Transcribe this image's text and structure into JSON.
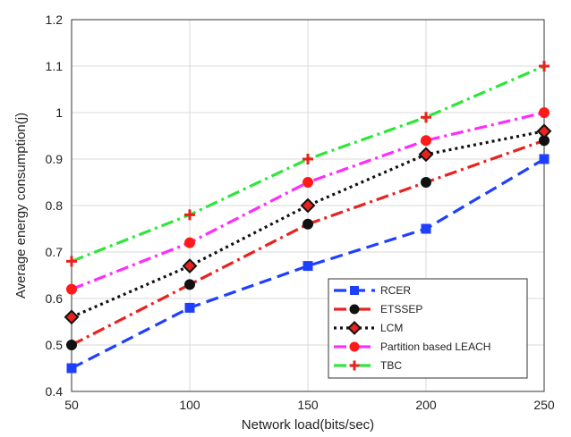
{
  "chart_data": {
    "type": "line",
    "title": "",
    "xlabel": "Network load(bits/sec)",
    "ylabel": "Average energy consumption(j)",
    "x": [
      50,
      100,
      150,
      200,
      250
    ],
    "xticks": [
      "50",
      "100",
      "150",
      "200",
      "250"
    ],
    "yticks": [
      "0.4",
      "0.5",
      "0.6",
      "0.7",
      "0.8",
      "0.9",
      "1",
      "1.1",
      "1.2"
    ],
    "xlim": [
      50,
      250
    ],
    "ylim": [
      0.4,
      1.2
    ],
    "grid": true,
    "legend_position": "bottom-right",
    "series": [
      {
        "name": "RCER",
        "values": [
          0.45,
          0.58,
          0.67,
          0.75,
          0.9
        ],
        "color": "#1f3fff",
        "marker": "square",
        "dash": "dashed"
      },
      {
        "name": "ETSSEP",
        "values": [
          0.5,
          0.63,
          0.76,
          0.85,
          0.94
        ],
        "color": "#e8231f",
        "marker": "circle-black",
        "dash": "dashdot"
      },
      {
        "name": "LCM",
        "values": [
          0.56,
          0.67,
          0.8,
          0.91,
          0.96
        ],
        "color": "#111111",
        "marker": "diamond",
        "dash": "dotted"
      },
      {
        "name": "Partition based LEACH",
        "values": [
          0.62,
          0.72,
          0.85,
          0.94,
          1.0
        ],
        "color": "#ff2bff",
        "marker": "circle-red",
        "dash": "dashdot"
      },
      {
        "name": "TBC",
        "values": [
          0.68,
          0.78,
          0.9,
          0.99,
          1.1
        ],
        "color": "#2ee63a",
        "marker": "plus",
        "dash": "dashdot"
      }
    ]
  }
}
